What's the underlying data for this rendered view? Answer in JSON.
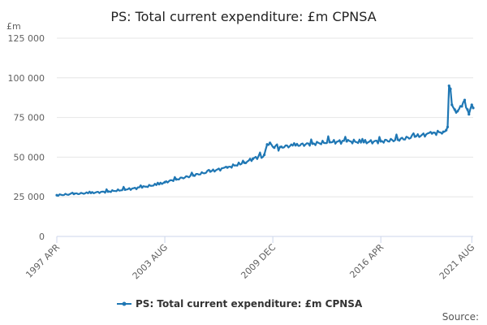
{
  "chart_data": {
    "type": "line",
    "title": "PS: Total current expenditure: £m CPNSA",
    "ylabel": "£m",
    "ylim": [
      0,
      125000
    ],
    "yticks": [
      0,
      25000,
      50000,
      75000,
      100000,
      125000
    ],
    "ytick_labels": [
      "0",
      "25 000",
      "50 000",
      "75 000",
      "100 000",
      "125 000"
    ],
    "xlim": [
      "1997-04",
      "2021-09"
    ],
    "xticks": [
      "1997-04",
      "2003-08",
      "2009-12",
      "2016-04",
      "2021-08"
    ],
    "xtick_labels": [
      "1997 APR",
      "2003 AUG",
      "2009 DEC",
      "2016 APR",
      "2021 AUG"
    ],
    "grid": true,
    "legend": "bottom",
    "series": [
      {
        "name": "PS: Total current expenditure: £m CPNSA",
        "color": "#1f77b4",
        "points": [
          [
            "1997-04",
            26000
          ],
          [
            "1998-04",
            26800
          ],
          [
            "1999-04",
            27500
          ],
          [
            "2000-04",
            28300
          ],
          [
            "2001-04",
            29500
          ],
          [
            "2002-04",
            31000
          ],
          [
            "2003-04",
            33000
          ],
          [
            "2003-08",
            34200
          ],
          [
            "2004-04",
            36000
          ],
          [
            "2005-04",
            38500
          ],
          [
            "2006-04",
            41000
          ],
          [
            "2007-04",
            43500
          ],
          [
            "2008-04",
            46500
          ],
          [
            "2008-10",
            49000
          ],
          [
            "2009-06",
            51500
          ],
          [
            "2009-08",
            58000
          ],
          [
            "2009-10",
            59000
          ],
          [
            "2010-01",
            56000
          ],
          [
            "2010-06",
            56500
          ],
          [
            "2011-04",
            57500
          ],
          [
            "2012-04",
            58500
          ],
          [
            "2013-04",
            59500
          ],
          [
            "2014-04",
            60000
          ],
          [
            "2015-04",
            59500
          ],
          [
            "2016-04",
            60000
          ],
          [
            "2017-04",
            61000
          ],
          [
            "2018-04",
            63000
          ],
          [
            "2019-04",
            65000
          ],
          [
            "2019-12",
            66000
          ],
          [
            "2020-02",
            67000
          ],
          [
            "2020-03",
            69000
          ],
          [
            "2020-04",
            95000
          ],
          [
            "2020-05",
            93000
          ],
          [
            "2020-06",
            83000
          ],
          [
            "2020-08",
            80000
          ],
          [
            "2020-10",
            79000
          ],
          [
            "2021-01",
            82000
          ],
          [
            "2021-03",
            86000
          ],
          [
            "2021-05",
            80000
          ],
          [
            "2021-06",
            77000
          ],
          [
            "2021-08",
            83000
          ],
          [
            "2021-09",
            81000
          ]
        ]
      }
    ]
  },
  "footer": {
    "source_label": "Source:"
  }
}
